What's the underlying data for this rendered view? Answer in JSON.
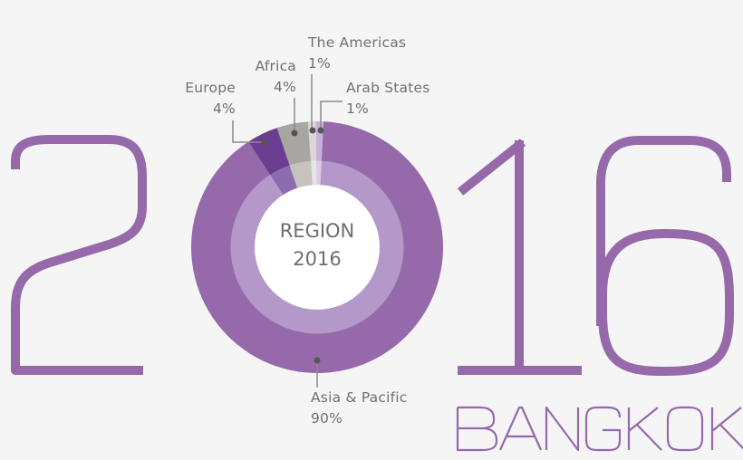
{
  "title": {
    "year_left": "2",
    "year_right": "16",
    "year_full": "2016",
    "city": "BANGKOK"
  },
  "center": {
    "line1": "REGION",
    "line2": "2016"
  },
  "colors": {
    "background": "#f5f5f6",
    "accent": "#9669aa",
    "text": "#707070",
    "leader": "#8a8a8a",
    "dot": "#555555",
    "center_fill": "#ffffff"
  },
  "chart_data": {
    "type": "pie",
    "title": "REGION 2016",
    "subtitle": "2016 BANGKOK",
    "categories": [
      "Asia & Pacific",
      "Europe",
      "Africa",
      "The Americas",
      "Arab States"
    ],
    "values": [
      90,
      4,
      4,
      1,
      1
    ],
    "unit": "%",
    "labels": [
      "Asia & Pacific 90%",
      "Europe 4%",
      "Africa 4%",
      "The Americas 1%",
      "Arab States 1%"
    ],
    "colors_outer": [
      "#9669aa",
      "#6a3d90",
      "#a8a5a2",
      "#dad8d8",
      "#c9b0d8"
    ],
    "colors_inner": [
      "#b398c9",
      "#8c6bae",
      "#c6c2be",
      "#e6e4e4",
      "#dccbe5"
    ],
    "donut": true,
    "legend": "callouts"
  },
  "labels": {
    "europe": {
      "name": "Europe",
      "value": "4%"
    },
    "africa": {
      "name": "Africa",
      "value": "4%"
    },
    "americas": {
      "name": "The Americas",
      "value": "1%"
    },
    "arab": {
      "name": "Arab States",
      "value": "1%"
    },
    "asia": {
      "name": "Asia & Pacific",
      "value": "90%"
    }
  }
}
